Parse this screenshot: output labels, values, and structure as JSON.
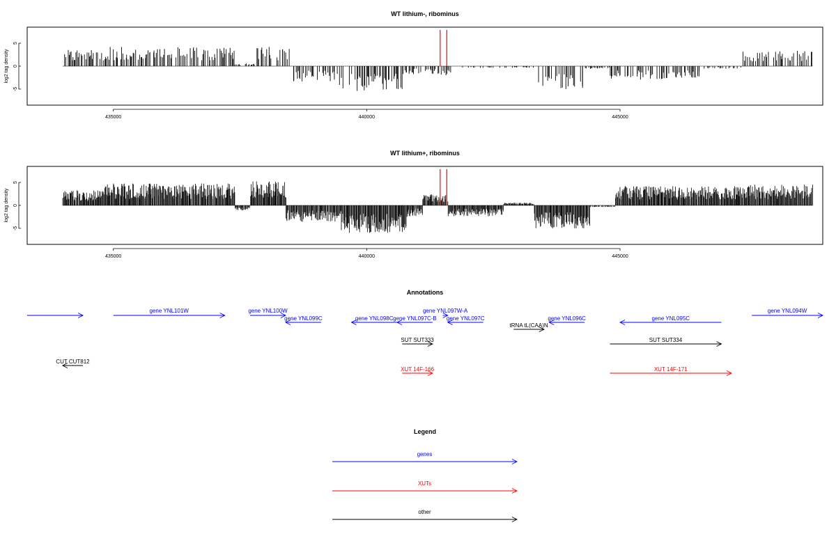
{
  "colors": {
    "gene": "#0000ff",
    "xut": "#ff0000",
    "other": "#000000",
    "marker": "#ff0000",
    "axis": "#000000"
  },
  "chart_data": [
    {
      "type": "bar",
      "title": "WT lithium-, ribominus",
      "xlabel": "",
      "ylabel": "log2 tag density",
      "xlim": [
        433300,
        449000
      ],
      "ylim": [
        -8.5,
        8.5
      ],
      "xticks": [
        435000,
        440000,
        445000
      ],
      "xtick_labels": [
        "435000",
        "440000",
        "445000"
      ],
      "yticks": [
        -5,
        0,
        5
      ],
      "ytick_labels": [
        "-5",
        "0",
        "5"
      ],
      "grid": false,
      "markers": [
        441450,
        441580
      ],
      "regions": [
        {
          "start": 434000,
          "end": 434800,
          "value": 3.0
        },
        {
          "start": 434800,
          "end": 434900,
          "value": 2.0
        },
        {
          "start": 434900,
          "end": 437400,
          "value": 3.5
        },
        {
          "start": 437400,
          "end": 437800,
          "value": 0.5
        },
        {
          "start": 437800,
          "end": 438500,
          "value": 3.5
        },
        {
          "start": 438500,
          "end": 439400,
          "value": -2.8
        },
        {
          "start": 439400,
          "end": 440700,
          "value": -4.5
        },
        {
          "start": 440700,
          "end": 441300,
          "value": -1.5
        },
        {
          "start": 441300,
          "end": 441700,
          "value": -1.8
        },
        {
          "start": 441700,
          "end": 443300,
          "value": -0.3
        },
        {
          "start": 443300,
          "end": 444000,
          "value": -4.2
        },
        {
          "start": 444000,
          "end": 444300,
          "value": -5.0
        },
        {
          "start": 444300,
          "end": 444800,
          "value": -0.5
        },
        {
          "start": 444800,
          "end": 446600,
          "value": -2.5
        },
        {
          "start": 446600,
          "end": 447400,
          "value": -0.5
        },
        {
          "start": 447400,
          "end": 448800,
          "value": 2.8
        }
      ]
    },
    {
      "type": "bar",
      "title": "WT lithium+, ribominus",
      "xlabel": "",
      "ylabel": "log2 tag density",
      "xlim": [
        433300,
        449000
      ],
      "ylim": [
        -8.5,
        8.5
      ],
      "xticks": [
        435000,
        440000,
        445000
      ],
      "xtick_labels": [
        "435000",
        "440000",
        "445000"
      ],
      "yticks": [
        -5,
        0,
        5
      ],
      "ytick_labels": [
        "-5",
        "0",
        "5"
      ],
      "grid": false,
      "markers": [
        441450,
        441580
      ],
      "regions": [
        {
          "start": 434000,
          "end": 434800,
          "value": 2.8
        },
        {
          "start": 434800,
          "end": 437400,
          "value": 4.0
        },
        {
          "start": 437400,
          "end": 437700,
          "value": -1.0
        },
        {
          "start": 437700,
          "end": 438400,
          "value": 4.5
        },
        {
          "start": 438400,
          "end": 439500,
          "value": -3.0
        },
        {
          "start": 439500,
          "end": 440800,
          "value": -5.0
        },
        {
          "start": 440800,
          "end": 441100,
          "value": -2.0
        },
        {
          "start": 441100,
          "end": 441600,
          "value": 2.0
        },
        {
          "start": 441600,
          "end": 442700,
          "value": -2.0
        },
        {
          "start": 442700,
          "end": 443300,
          "value": 0.5
        },
        {
          "start": 443300,
          "end": 444400,
          "value": -4.2
        },
        {
          "start": 444400,
          "end": 444900,
          "value": -0.3
        },
        {
          "start": 444900,
          "end": 447400,
          "value": 3.5
        },
        {
          "start": 447400,
          "end": 448800,
          "value": 3.8
        }
      ]
    }
  ],
  "annotations": {
    "title": "Annotations",
    "features": [
      {
        "label": "",
        "kind": "gene",
        "start": 433300,
        "end": 434400,
        "strand": "+",
        "row": 0
      },
      {
        "label": "gene YNL101W",
        "kind": "gene",
        "start": 435000,
        "end": 437200,
        "strand": "+",
        "row": 0
      },
      {
        "label": "gene YNL100W",
        "kind": "gene",
        "start": 437700,
        "end": 438400,
        "strand": "+",
        "row": 0
      },
      {
        "label": "gene YNL099C",
        "kind": "gene",
        "start": 438400,
        "end": 439100,
        "strand": "-",
        "row": 1
      },
      {
        "label": "gene YNL098C",
        "kind": "gene",
        "start": 439700,
        "end": 440600,
        "strand": "-",
        "row": 1
      },
      {
        "label": "gene YNL097C-B",
        "kind": "gene",
        "start": 440600,
        "end": 441300,
        "strand": "-",
        "row": 1
      },
      {
        "label": "gene YNL097W-A",
        "kind": "gene",
        "start": 441500,
        "end": 441600,
        "strand": "+",
        "row": 0
      },
      {
        "label": "gene YNL097C",
        "kind": "gene",
        "start": 441600,
        "end": 442300,
        "strand": "-",
        "row": 1
      },
      {
        "label": "tRNA tL(CAA)N",
        "kind": "other",
        "start": 442900,
        "end": 443500,
        "strand": "+",
        "row": 2
      },
      {
        "label": "gene YNL096C",
        "kind": "gene",
        "start": 443600,
        "end": 444300,
        "strand": "-",
        "row": 1
      },
      {
        "label": "gene YNL095C",
        "kind": "gene",
        "start": 445000,
        "end": 447000,
        "strand": "-",
        "row": 1
      },
      {
        "label": "gene YNL094W",
        "kind": "gene",
        "start": 447600,
        "end": 449000,
        "strand": "+",
        "row": 0
      },
      {
        "label": "SUT SUT333",
        "kind": "other",
        "start": 440700,
        "end": 441300,
        "strand": "+",
        "row": 3
      },
      {
        "label": "SUT SUT334",
        "kind": "other",
        "start": 444800,
        "end": 447000,
        "strand": "+",
        "row": 3
      },
      {
        "label": "CUT CUT812",
        "kind": "other",
        "start": 434000,
        "end": 434400,
        "strand": "-",
        "row": 4
      },
      {
        "label": "XUT 14F-166",
        "kind": "xut",
        "start": 440700,
        "end": 441300,
        "strand": "+",
        "row": 5
      },
      {
        "label": "XUT 14F-171",
        "kind": "xut",
        "start": 444800,
        "end": 447200,
        "strand": "+",
        "row": 5
      }
    ]
  },
  "legend": {
    "title": "Legend",
    "items": [
      {
        "label": "genes",
        "kind": "gene"
      },
      {
        "label": "XUTs",
        "kind": "xut"
      },
      {
        "label": "other",
        "kind": "other"
      }
    ]
  }
}
